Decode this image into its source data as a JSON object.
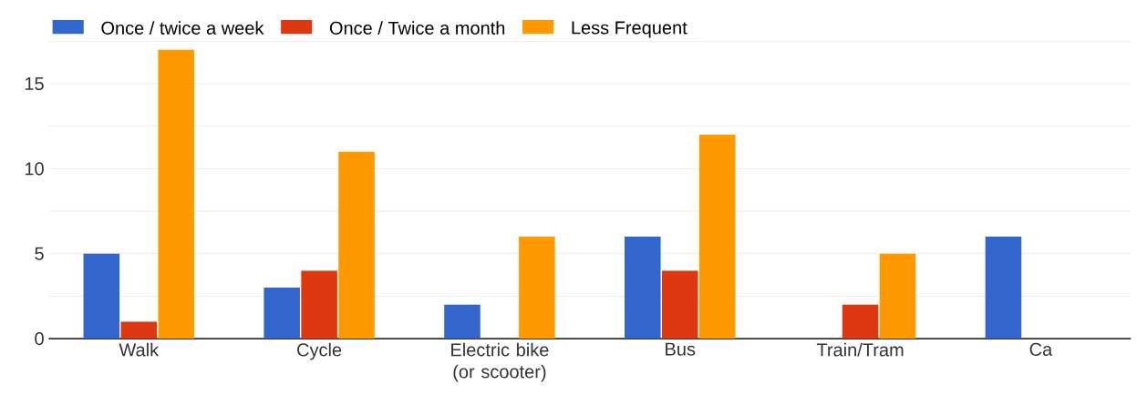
{
  "chart_data": {
    "type": "bar",
    "categories": [
      "Walk",
      "Cycle",
      "Electric bike (or scooter)",
      "Bus",
      "Train/Tram",
      "Ca"
    ],
    "series": [
      {
        "name": "Once / twice a week",
        "color": "#3366cc",
        "values": [
          5,
          3,
          2,
          6,
          null,
          6
        ]
      },
      {
        "name": "Once / Twice a month",
        "color": "#dc3912",
        "values": [
          1,
          4,
          null,
          4,
          2,
          null
        ]
      },
      {
        "name": "Less Frequent",
        "color": "#ff9900",
        "values": [
          17,
          11,
          6,
          12,
          5,
          null
        ]
      }
    ],
    "ylim": [
      0,
      17.5
    ],
    "yticks": [
      0,
      {
        "value": 2.5,
        "label": null
      },
      5,
      {
        "value": 7.5,
        "label": null
      },
      10,
      {
        "value": 12.5,
        "label": null
      },
      15,
      {
        "value": 17.5,
        "label": null
      }
    ],
    "grid": "y",
    "legend": "top left"
  }
}
